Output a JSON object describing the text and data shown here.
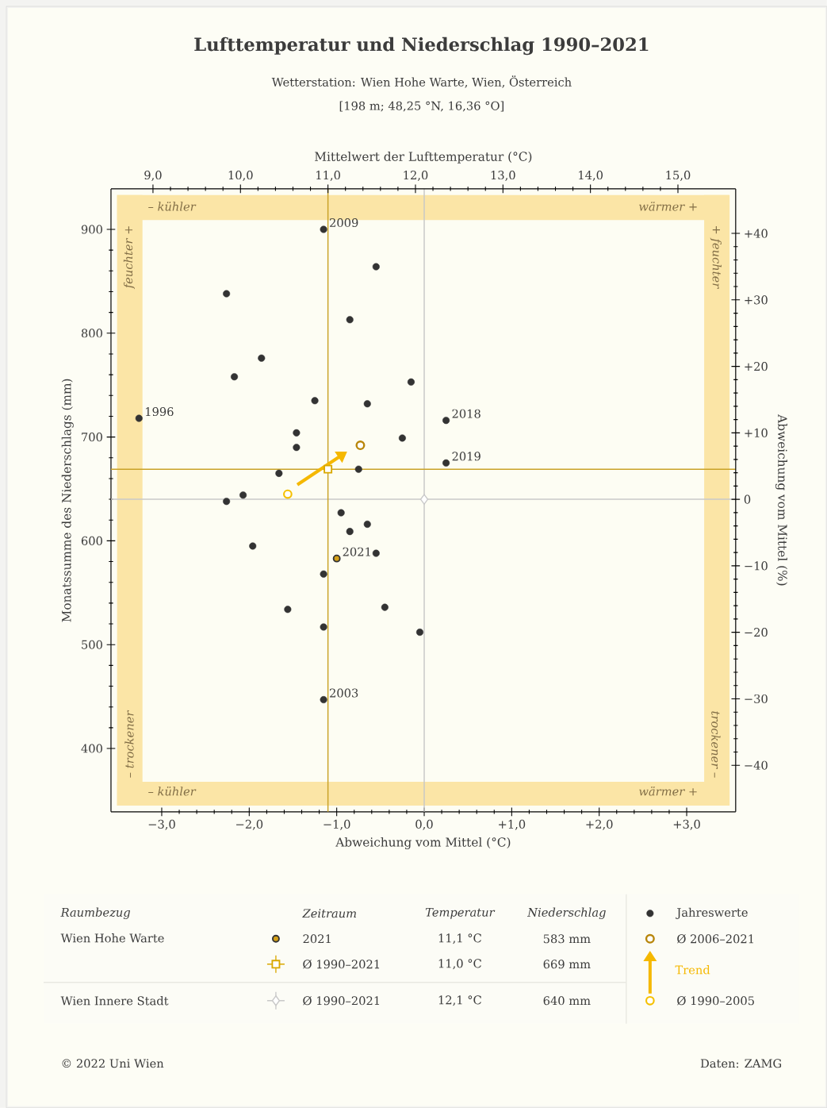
{
  "chart_data": {
    "type": "scatter",
    "title": "Lufttemperatur und Niederschlag 1990–2021",
    "subtitle": "Wetterstation: Wien Hohe Warte, Wien, Österreich",
    "xlabel": "Abweichung vom Mittel (°C)",
    "x2label": "Mittelwert der Lufttemperatur (°C)",
    "ylabel": "Monatssumme des Niederschlags (mm)",
    "y2label": "Abweichung vom Mittel (%)",
    "xlim": [
      -3.58,
      3.56
    ],
    "xticks": [
      {
        "value": -3,
        "label": "−3,0"
      },
      {
        "value": -2,
        "label": "−2,0"
      },
      {
        "value": -1,
        "label": "−1,0"
      },
      {
        "value": 0,
        "label": "0,0"
      },
      {
        "value": 1,
        "label": "+1,0"
      },
      {
        "value": 2,
        "label": "+2,0"
      },
      {
        "value": 3,
        "label": "+3,0"
      }
    ],
    "x2lim": [
      8.52,
      15.66
    ],
    "x2ticks": [
      {
        "value": 9,
        "label": "9,0"
      },
      {
        "value": 10,
        "label": "10,0"
      },
      {
        "value": 11,
        "label": "11,0"
      },
      {
        "value": 12,
        "label": "12,0"
      },
      {
        "value": 13,
        "label": "13,0"
      },
      {
        "value": 14,
        "label": "14,0"
      },
      {
        "value": 15,
        "label": "15,0"
      }
    ],
    "ylim": [
      339,
      939
    ],
    "yticks": [
      400,
      500,
      600,
      700,
      800,
      900
    ],
    "y2lim": [
      -47.0,
      46.7
    ],
    "y2ticks": [
      {
        "value": -40,
        "label": "−40"
      },
      {
        "value": -30,
        "label": "−30"
      },
      {
        "value": -20,
        "label": "−20"
      },
      {
        "value": -10,
        "label": "−10"
      },
      0,
      {
        "value": 10,
        "label": "+10"
      },
      {
        "value": 20,
        "label": "+20"
      },
      {
        "value": 30,
        "label": "+30"
      },
      {
        "value": 40,
        "label": "+40"
      }
    ],
    "legend": "bottom",
    "bands": [
      {
        "axis": "x",
        "from": -3.51,
        "to": -3.22,
        "color": "#fbe5a6"
      },
      {
        "axis": "x",
        "from": 3.2,
        "to": 3.49,
        "color": "#fbe5a6"
      },
      {
        "axis": "y",
        "from": 909,
        "to": 933,
        "color": "#fbe5a6"
      },
      {
        "axis": "y",
        "from": 345,
        "to": 368,
        "color": "#fbe5a6"
      }
    ],
    "ref_lines": [
      {
        "axis": "x",
        "value": 0,
        "color": "#c8c8c8"
      },
      {
        "axis": "y",
        "value": 640,
        "color": "#c8c8c8"
      },
      {
        "axis": "x",
        "value": -1.1,
        "color": "#c9a227"
      },
      {
        "axis": "y",
        "value": 669,
        "color": "#c9a227"
      }
    ],
    "series": [
      {
        "name": "Jahreswerte",
        "marker": "circle",
        "color": "#333333",
        "x": [
          -1.15,
          -0.55,
          -2.26,
          -0.85,
          -1.86,
          -2.17,
          -0.15,
          -3.26,
          -1.25,
          -0.65,
          0.25,
          -1.46,
          -0.25,
          -1.46,
          0.25,
          -0.75,
          -1.66,
          -2.07,
          -2.26,
          -0.95,
          -0.65,
          -0.85,
          -1.96,
          -0.55,
          -1.15,
          -1.56,
          -0.45,
          -1.15,
          -0.05,
          -1.15
        ],
        "values": [
          900,
          864,
          838,
          813,
          776,
          758,
          753,
          718,
          735,
          732,
          716,
          704,
          699,
          690,
          675,
          669,
          665,
          644,
          638,
          627,
          616,
          609,
          595,
          588,
          568,
          534,
          536,
          517,
          512,
          447
        ]
      },
      {
        "name": "2021",
        "marker": "circle",
        "color": "#d4a017",
        "x": [
          -1.0
        ],
        "values": [
          583
        ]
      },
      {
        "name": "Ø 1990–2021",
        "marker": "square",
        "color": "#d9a800",
        "x": [
          -1.1
        ],
        "values": [
          669
        ]
      },
      {
        "name": "Ø 1990–2021",
        "marker": "diamond",
        "color": "#c8c8c8",
        "x": [
          0.0
        ],
        "values": [
          640
        ]
      },
      {
        "name": "Ø 2006–2021",
        "marker": "circle",
        "color": "#b8860b",
        "x": [
          -0.73
        ],
        "values": [
          692
        ]
      },
      {
        "name": "Ø 1990–2005",
        "marker": "circle",
        "color": "#f5c000",
        "x": [
          -1.56
        ],
        "values": [
          645
        ]
      },
      {
        "name": "Trend",
        "type": "line",
        "color": "#f5b800",
        "x": [
          -1.45,
          -0.97
        ],
        "values": [
          654,
          681
        ]
      }
    ],
    "annotations": [
      {
        "text": "2009",
        "x": -1.15,
        "y": 900
      },
      {
        "text": "1996",
        "x": -3.26,
        "y": 718
      },
      {
        "text": "2018",
        "x": 0.25,
        "y": 716
      },
      {
        "text": "2019",
        "x": 0.25,
        "y": 675
      },
      {
        "text": "2021",
        "x": -1.0,
        "y": 583
      },
      {
        "text": "2003",
        "x": -1.15,
        "y": 447
      },
      "[198 m; 48,25 °N, 16,36 °O]",
      "– kühler",
      "wärmer +",
      "– kühler",
      "wärmer +",
      "feuchter +",
      "– trockener",
      "+ feuchter",
      "trockener –",
      "Raumbezug",
      "Zeitraum",
      "Temperatur",
      "Niederschlag",
      "Wien Hohe Warte",
      "11,1 °C",
      "583 mm",
      "11,0 °C",
      "669 mm",
      "Wien Innere Stadt",
      "12,1 °C",
      "640 mm",
      "© 2022 Uni Wien",
      "Daten: ZAMG"
    ]
  }
}
